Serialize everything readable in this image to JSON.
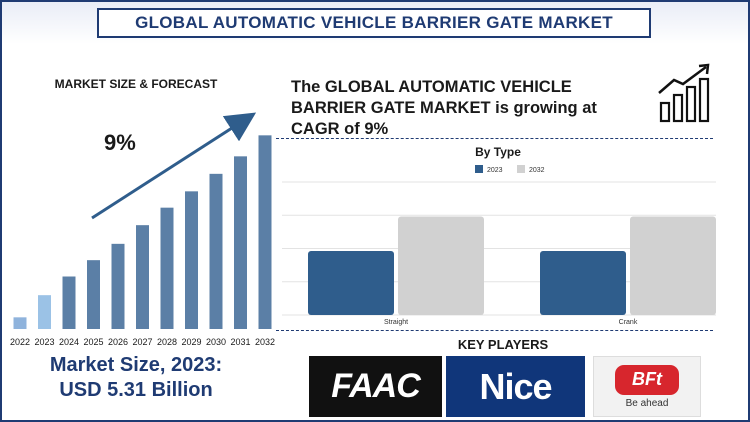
{
  "header": {
    "title": "GLOBAL AUTOMATIC VEHICLE BARRIER GATE MARKET"
  },
  "forecast": {
    "title": "MARKET SIZE & FORECAST",
    "cagr_label": "9%",
    "market_size_line1": "Market Size, 2023:",
    "market_size_line2": "USD 5.31 Billion"
  },
  "summary": {
    "heading": "The GLOBAL AUTOMATIC VEHICLE BARRIER GATE MARKET is growing at CAGR of 9%"
  },
  "key_players": {
    "title": "KEY PLAYERS",
    "logos": [
      {
        "name": "FAAC",
        "text": "FAAC"
      },
      {
        "name": "Nice",
        "text": "Nice"
      },
      {
        "name": "BFT",
        "text": "BFt",
        "tagline": "Be ahead"
      }
    ]
  },
  "colors": {
    "primary": "#1f3b73",
    "bar_dark": "#5b7fa6",
    "bar_light": "#8fb3dc",
    "bar_highlight": "#9bc2e6",
    "series_2023": "#2f5d8c",
    "series_2032": "#d1d1d1"
  },
  "chart_data": [
    {
      "type": "bar",
      "title": "",
      "categories": [
        "2022",
        "2023",
        "2024",
        "2025",
        "2026",
        "2027",
        "2028",
        "2029",
        "2030",
        "2031",
        "2032"
      ],
      "values": [
        1,
        2.9,
        4.5,
        5.9,
        7.3,
        8.9,
        10.4,
        11.8,
        13.3,
        14.8,
        16.6
      ],
      "ylim": [
        0,
        18
      ],
      "xlabel": "",
      "ylabel": "",
      "grid": false
    },
    {
      "type": "bar",
      "title": "By Type",
      "categories": [
        "Straight",
        "Crank"
      ],
      "series": [
        {
          "name": "2023",
          "values": [
            2.6,
            2.6
          ]
        },
        {
          "name": "2032",
          "values": [
            4.0,
            4.0
          ]
        }
      ],
      "ylim": [
        0,
        5.4
      ],
      "legend": "top-center",
      "grid": true
    }
  ]
}
